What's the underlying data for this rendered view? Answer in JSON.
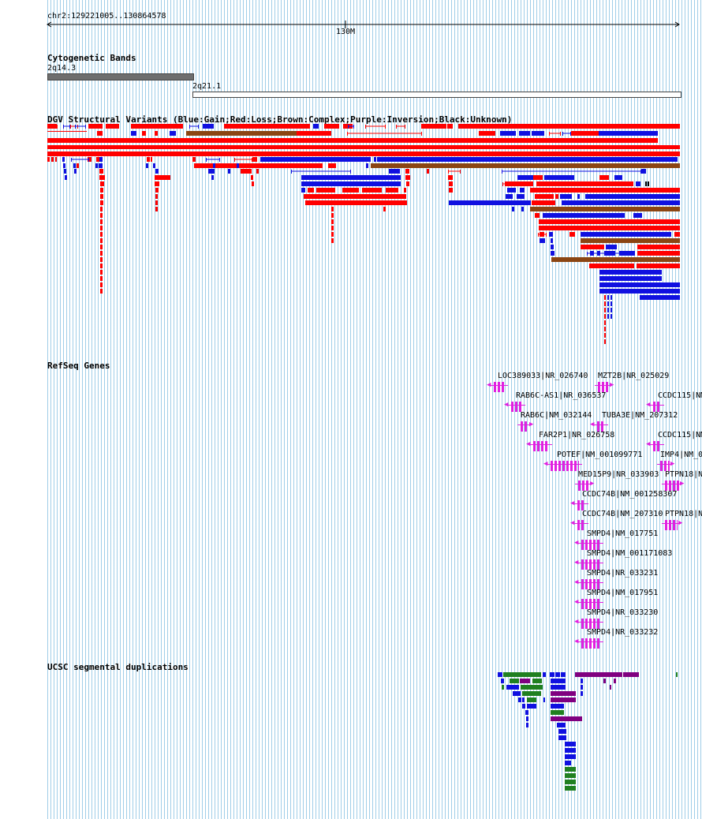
{
  "ruler": {
    "coords": "chr2:129221005..130864578",
    "tick_label": "130M"
  },
  "cytoband": {
    "title": "Cytogenetic Bands",
    "bands": [
      {
        "name": "2q14.3",
        "color": "#6e6e6e"
      },
      {
        "name": "2q21.1",
        "color": "#ffffff"
      }
    ]
  },
  "dgv": {
    "title": "DGV Structural Variants (Blue:Gain;Red:Loss;Brown:Complex;Purple:Inversion;Black:Unknown)",
    "colors": {
      "gain": "#1010e0",
      "loss": "#ff0000",
      "complex": "#8b4513",
      "inversion": "#800080",
      "unknown": "#000000"
    }
  },
  "refseq": {
    "title": "RefSeq Genes",
    "gene_color": "#e020e0",
    "genes": [
      "LOC389033|NR_026740",
      "MZT2B|NR_025029",
      "RAB6C-AS1|NR_036537",
      "CCDC115|NM_",
      "RAB6C|NM_032144",
      "TUBA3E|NM_207312",
      "FAR2P1|NR_026758",
      "CCDC115|NM_",
      "POTEF|NM_001099771",
      "IMP4|NM_0",
      "MED15P9|NR_033903",
      "PTPN18|N",
      "CCDC74B|NM_001258307",
      "CCDC74B|NM_207310",
      "PTPN18|N",
      "SMPD4|NM_017751",
      "SMPD4|NM_001171083",
      "SMPD4|NR_033231",
      "SMPD4|NM_017951",
      "SMPD4|NR_033230",
      "SMPD4|NR_033232"
    ]
  },
  "segdup": {
    "title": "UCSC segmental duplications",
    "colors": [
      "#1010e0",
      "#208020",
      "#800080"
    ]
  }
}
